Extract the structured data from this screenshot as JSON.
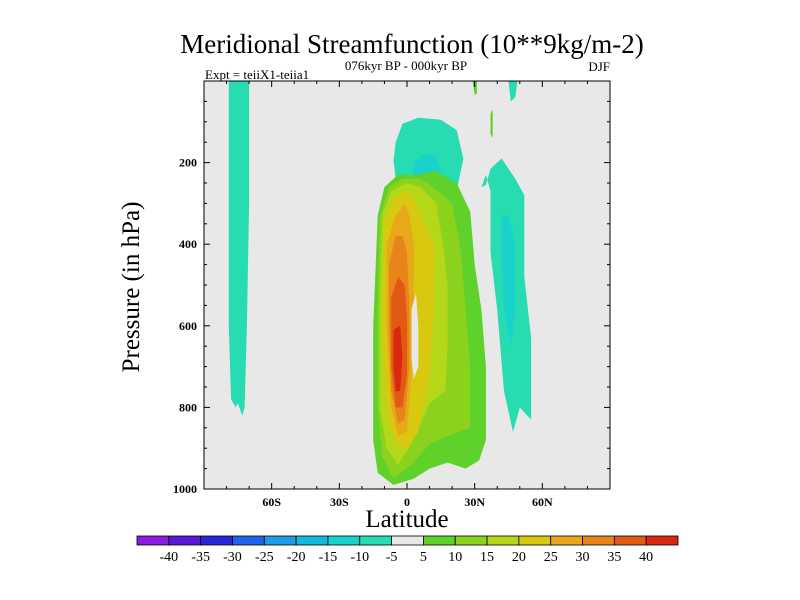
{
  "chart_data": {
    "type": "contour",
    "title": "Meridional Streamfunction (10**9kg/m-2)",
    "left_label": "Expt = teiiX1-teiia1",
    "center_label": "076kyr BP - 000kyr BP",
    "right_label": "DJF",
    "xlabel": "Latitude",
    "ylabel": "Pressure (in hPa)",
    "xlim": [
      -90,
      90
    ],
    "ylim": [
      1000,
      0
    ],
    "x_ticks": [
      {
        "value": -60,
        "label": "60S"
      },
      {
        "value": -30,
        "label": "30S"
      },
      {
        "value": 0,
        "label": "0"
      },
      {
        "value": 30,
        "label": "30N"
      },
      {
        "value": 60,
        "label": "60N"
      }
    ],
    "y_ticks": [
      {
        "value": 200,
        "label": "200"
      },
      {
        "value": 400,
        "label": "400"
      },
      {
        "value": 600,
        "label": "600"
      },
      {
        "value": 800,
        "label": "800"
      },
      {
        "value": 1000,
        "label": "1000"
      }
    ],
    "colorbar": {
      "labels": [
        "-40",
        "-35",
        "-30",
        "-25",
        "-20",
        "-15",
        "-10",
        "-5",
        "5",
        "10",
        "15",
        "20",
        "25",
        "30",
        "35",
        "40"
      ],
      "colors": [
        "#8a1ee0",
        "#5a18d8",
        "#2828d8",
        "#1e64e8",
        "#1e9ae6",
        "#14b8dc",
        "#1ad2cc",
        "#26dcb0",
        "#e8e8e8",
        "#5ed22a",
        "#8ad21e",
        "#b4d818",
        "#d8c810",
        "#e8a81a",
        "#e8841c",
        "#e05a14",
        "#d82810"
      ]
    },
    "background_color": "#e8e8e8",
    "regions": [
      {
        "name": "southern-cell",
        "level": -5,
        "color": "#26dcb0",
        "points": [
          [
            -79,
            0
          ],
          [
            -70,
            0
          ],
          [
            -70,
            300
          ],
          [
            -71,
            600
          ],
          [
            -72,
            800
          ],
          [
            -73,
            820
          ],
          [
            -75,
            790
          ],
          [
            -76,
            800
          ],
          [
            -78,
            780
          ],
          [
            -79,
            600
          ],
          [
            -79,
            300
          ]
        ]
      },
      {
        "name": "upper-tropical-cell-outer",
        "level": -5,
        "color": "#26dcb0",
        "points": [
          [
            -5,
            150
          ],
          [
            -2,
            105
          ],
          [
            5,
            90
          ],
          [
            15,
            95
          ],
          [
            22,
            120
          ],
          [
            25,
            190
          ],
          [
            22,
            270
          ],
          [
            15,
            300
          ],
          [
            8,
            300
          ],
          [
            2,
            280
          ],
          [
            -5,
            240
          ],
          [
            -6,
            195
          ]
        ]
      },
      {
        "name": "upper-tropical-cell-inner",
        "level": -10,
        "color": "#1ad2cc",
        "points": [
          [
            3,
            200
          ],
          [
            7,
            180
          ],
          [
            13,
            185
          ],
          [
            15,
            220
          ],
          [
            13,
            265
          ],
          [
            6,
            265
          ],
          [
            3,
            240
          ]
        ]
      },
      {
        "name": "northern-cell-outer",
        "level": -5,
        "color": "#26dcb0",
        "points": [
          [
            33,
            260
          ],
          [
            35,
            230
          ],
          [
            37,
            270
          ],
          [
            37,
            420
          ],
          [
            40,
            560
          ],
          [
            43,
            760
          ],
          [
            47,
            860
          ],
          [
            50,
            800
          ],
          [
            55,
            830
          ],
          [
            55,
            630
          ],
          [
            52,
            480
          ],
          [
            52,
            280
          ],
          [
            48,
            240
          ],
          [
            42,
            190
          ],
          [
            37,
            215
          ],
          [
            35,
            255
          ]
        ]
      },
      {
        "name": "northern-cell-inner",
        "level": -10,
        "color": "#1ad2cc",
        "points": [
          [
            42,
            330
          ],
          [
            45,
            330
          ],
          [
            48,
            400
          ],
          [
            48,
            560
          ],
          [
            46,
            650
          ],
          [
            43,
            560
          ],
          [
            42,
            440
          ]
        ]
      },
      {
        "name": "top-cell-a",
        "level": -5,
        "color": "#26dcb0",
        "points": [
          [
            45,
            0
          ],
          [
            49,
            0
          ],
          [
            48,
            40
          ],
          [
            46,
            50
          ]
        ]
      },
      {
        "name": "top-cell-b",
        "level": 5,
        "color": "#5ed22a",
        "points": [
          [
            29,
            0
          ],
          [
            31,
            0
          ],
          [
            31,
            30
          ],
          [
            30,
            35
          ]
        ]
      },
      {
        "name": "top-cell-c",
        "level": 5,
        "color": "#5ed22a",
        "points": [
          [
            37,
            80
          ],
          [
            38,
            70
          ],
          [
            38,
            140
          ],
          [
            37,
            130
          ]
        ]
      },
      {
        "name": "hadley-5",
        "level": 5,
        "color": "#5ed22a",
        "points": [
          [
            -13,
            330
          ],
          [
            -10,
            260
          ],
          [
            -4,
            230
          ],
          [
            5,
            230
          ],
          [
            12,
            220
          ],
          [
            22,
            250
          ],
          [
            28,
            320
          ],
          [
            30,
            450
          ],
          [
            33,
            560
          ],
          [
            35,
            700
          ],
          [
            35,
            880
          ],
          [
            32,
            930
          ],
          [
            26,
            950
          ],
          [
            18,
            935
          ],
          [
            10,
            950
          ],
          [
            3,
            975
          ],
          [
            -6,
            990
          ],
          [
            -13,
            960
          ],
          [
            -15,
            880
          ],
          [
            -15,
            600
          ]
        ]
      },
      {
        "name": "hadley-10",
        "level": 10,
        "color": "#8ad21e",
        "points": [
          [
            -12,
            330
          ],
          [
            -8,
            260
          ],
          [
            -2,
            240
          ],
          [
            6,
            240
          ],
          [
            14,
            270
          ],
          [
            20,
            300
          ],
          [
            24,
            420
          ],
          [
            26,
            560
          ],
          [
            28,
            700
          ],
          [
            28,
            850
          ],
          [
            18,
            870
          ],
          [
            10,
            890
          ],
          [
            2,
            940
          ],
          [
            -6,
            975
          ],
          [
            -11,
            920
          ],
          [
            -13,
            800
          ],
          [
            -13,
            550
          ]
        ]
      },
      {
        "name": "hadley-15",
        "level": 15,
        "color": "#b4d818",
        "points": [
          [
            -11,
            330
          ],
          [
            -7,
            270
          ],
          [
            0,
            250
          ],
          [
            6,
            260
          ],
          [
            13,
            300
          ],
          [
            16,
            400
          ],
          [
            18,
            500
          ],
          [
            18,
            650
          ],
          [
            17,
            760
          ],
          [
            10,
            790
          ],
          [
            2,
            890
          ],
          [
            -4,
            940
          ],
          [
            -9,
            900
          ],
          [
            -12,
            800
          ],
          [
            -12,
            550
          ]
        ]
      },
      {
        "name": "hadley-20",
        "level": 20,
        "color": "#d8c810",
        "points": [
          [
            -10,
            350
          ],
          [
            -6,
            290
          ],
          [
            -1,
            270
          ],
          [
            3,
            290
          ],
          [
            6,
            330
          ],
          [
            12,
            400
          ],
          [
            12,
            560
          ],
          [
            10,
            720
          ],
          [
            5,
            860
          ],
          [
            0,
            900
          ],
          [
            -5,
            890
          ],
          [
            -9,
            820
          ],
          [
            -11,
            600
          ]
        ]
      },
      {
        "name": "hadley-25",
        "level": 25,
        "color": "#e8a81a",
        "points": [
          [
            -9,
            400
          ],
          [
            -5,
            330
          ],
          [
            -1,
            300
          ],
          [
            1,
            330
          ],
          [
            3,
            400
          ],
          [
            3,
            560
          ],
          [
            2,
            720
          ],
          [
            0,
            860
          ],
          [
            -4,
            870
          ],
          [
            -7,
            800
          ],
          [
            -9,
            600
          ]
        ]
      },
      {
        "name": "hadley-30",
        "level": 30,
        "color": "#e8841c",
        "points": [
          [
            -8,
            450
          ],
          [
            -5,
            380
          ],
          [
            -2,
            380
          ],
          [
            0,
            420
          ],
          [
            1,
            540
          ],
          [
            1,
            700
          ],
          [
            -1,
            830
          ],
          [
            -4,
            840
          ],
          [
            -7,
            760
          ],
          [
            -8,
            600
          ]
        ]
      },
      {
        "name": "hadley-35",
        "level": 35,
        "color": "#e05a14",
        "points": [
          [
            -7,
            530
          ],
          [
            -4,
            480
          ],
          [
            -1,
            500
          ],
          [
            0,
            580
          ],
          [
            0,
            720
          ],
          [
            -2,
            800
          ],
          [
            -5,
            800
          ],
          [
            -7,
            700
          ]
        ]
      },
      {
        "name": "hadley-40",
        "level": 40,
        "color": "#d82810",
        "points": [
          [
            -6,
            610
          ],
          [
            -3,
            600
          ],
          [
            -2,
            680
          ],
          [
            -3,
            760
          ],
          [
            -5,
            760
          ],
          [
            -6,
            700
          ]
        ]
      },
      {
        "name": "hadley-inner-white",
        "level": -5,
        "color": "#e8e8e8",
        "points": [
          [
            2,
            560
          ],
          [
            4,
            520
          ],
          [
            5,
            600
          ],
          [
            5,
            700
          ],
          [
            3,
            730
          ],
          [
            2,
            680
          ]
        ]
      }
    ]
  }
}
